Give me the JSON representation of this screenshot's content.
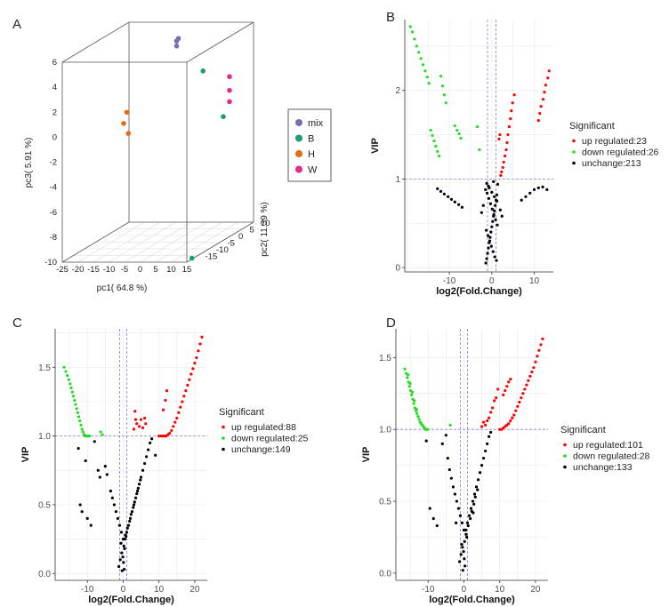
{
  "panel_letters": [
    "A",
    "B",
    "C",
    "D"
  ],
  "colors": {
    "mix": "#7570b3",
    "B": "#1b9e77",
    "H": "#e66a14",
    "W": "#e7298a",
    "up": "#ff0000",
    "down": "#22dd22",
    "unchange": "#000000",
    "grid": "#ebebeb",
    "refline": "#8080e0"
  },
  "chart_data": [
    {
      "panel": "A",
      "type": "scatter",
      "subtype": "3d-scatter",
      "xlabel": "pc1( 64.8 %)",
      "ylabel": "pc2( 11.39 %)",
      "zlabel": "pc3( 5.91 %)",
      "x_ticks": [
        "-25",
        "-20",
        "-15",
        "-10",
        "-5",
        "0",
        "5",
        "10",
        "15"
      ],
      "y_ticks": [
        "-15",
        "-10",
        "-5",
        "0",
        "5",
        "10"
      ],
      "z_ticks": [
        "-10",
        "-8",
        "-6",
        "-4",
        "-2",
        "0",
        "2",
        "4",
        "6"
      ],
      "xlim": [
        -25,
        15
      ],
      "ylim": [
        -20,
        10
      ],
      "zlim": [
        -10,
        6
      ],
      "legend_position": "right",
      "series": [
        {
          "name": "mix",
          "points": [
            [
              1,
              -5,
              6.1
            ],
            [
              1,
              -5,
              5.7
            ],
            [
              1.6,
              -5,
              6.3
            ]
          ]
        },
        {
          "name": "B",
          "points": [
            [
              9.5,
              -5,
              3.7
            ],
            [
              11,
              2,
              -0.7
            ],
            [
              14.5,
              -17,
              -10
            ]
          ]
        },
        {
          "name": "H",
          "points": [
            [
              -15,
              -5,
              0.4
            ],
            [
              -16,
              -5,
              -0.5
            ],
            [
              -14.5,
              -5,
              -1.3
            ]
          ]
        },
        {
          "name": "W",
          "points": [
            [
              13,
              2,
              2.5
            ],
            [
              13,
              2,
              1.4
            ],
            [
              13,
              2,
              0.5
            ]
          ]
        }
      ]
    },
    {
      "panel": "B",
      "type": "scatter",
      "subtype": "volcano",
      "xlabel": "log2(Fold.Change)",
      "ylabel": "VIP",
      "xlim": [
        -20.5,
        14.5
      ],
      "ylim": [
        -0.05,
        2.8
      ],
      "x_ticks": [
        -10,
        0,
        10
      ],
      "y_ticks": [
        0,
        1,
        2
      ],
      "threshold_y": 1,
      "threshold_x": [
        -1,
        1
      ],
      "legend_title": "Significant",
      "legend_position": "right",
      "series": [
        {
          "name": "up regulated:23",
          "x": [
            13.5,
            13.2,
            12.7,
            12.4,
            12.1,
            11.6,
            11.3,
            11.0,
            5.3,
            4.9,
            4.6,
            4.4,
            4.1,
            3.8,
            3.6,
            3.4,
            3.1,
            2.8,
            2.6,
            2.3,
            2.1,
            1.9,
            1.7
          ],
          "y": [
            2.22,
            2.14,
            2.06,
            1.98,
            1.9,
            1.82,
            1.74,
            1.66,
            1.95,
            1.86,
            1.77,
            1.68,
            1.59,
            1.5,
            1.41,
            1.33,
            1.26,
            1.19,
            1.13,
            1.08,
            1.04,
            1.5,
            1.45
          ]
        },
        {
          "name": "down regulated:26",
          "x": [
            -19.2,
            -18.7,
            -18.2,
            -17.7,
            -17.2,
            -16.7,
            -16.2,
            -15.7,
            -15.2,
            -14.8,
            -14.4,
            -14.0,
            -13.6,
            -13.2,
            -12.8,
            -12.4,
            -12.0,
            -11.6,
            -11.2,
            -10.8,
            -8.7,
            -8.2,
            -7.7,
            -7.3,
            -3.4,
            -2.9
          ],
          "y": [
            2.72,
            2.66,
            2.58,
            2.5,
            2.43,
            2.36,
            2.29,
            2.22,
            2.15,
            2.08,
            1.55,
            1.49,
            1.43,
            1.37,
            1.31,
            1.26,
            2.16,
            2.05,
            1.95,
            1.86,
            1.6,
            1.55,
            1.51,
            1.46,
            1.59,
            1.33
          ]
        },
        {
          "name": "unchange:213",
          "x": [
            -12.8,
            -12.0,
            -11.2,
            -10.3,
            -9.5,
            -8.7,
            -7.8,
            -7.0,
            7.0,
            8.0,
            9.0,
            10.0,
            11.0,
            12.0,
            13.0,
            -1.4,
            -1.2,
            -1.0,
            -0.8,
            -0.6,
            -0.4,
            -0.2,
            0.0,
            0.2,
            0.4,
            0.6,
            0.8,
            1.0,
            1.2,
            -1.5,
            -1.1,
            -0.7,
            -0.3,
            0.1,
            0.5,
            0.9,
            1.3,
            -1.3,
            -0.9,
            -0.5,
            -0.1,
            0.3,
            0.7,
            1.1,
            -1.2,
            -0.6,
            0.0,
            0.6,
            1.2,
            -0.8,
            0.4,
            1.4,
            -2.0,
            2.0,
            -2.4,
            2.4
          ],
          "y": [
            0.89,
            0.86,
            0.83,
            0.8,
            0.77,
            0.74,
            0.71,
            0.68,
            0.76,
            0.8,
            0.84,
            0.88,
            0.9,
            0.91,
            0.88,
            0.05,
            0.1,
            0.16,
            0.22,
            0.28,
            0.34,
            0.4,
            0.46,
            0.52,
            0.58,
            0.64,
            0.7,
            0.76,
            0.82,
            0.88,
            0.84,
            0.78,
            0.72,
            0.66,
            0.6,
            0.54,
            0.48,
            0.42,
            0.36,
            0.3,
            0.24,
            0.18,
            0.12,
            0.08,
            0.95,
            0.9,
            0.85,
            0.8,
            0.75,
            0.92,
            0.97,
            0.94,
            0.7,
            0.65,
            0.62,
            0.58
          ]
        }
      ]
    },
    {
      "panel": "C",
      "type": "scatter",
      "subtype": "volcano",
      "xlabel": "log2(Fold.Change)",
      "ylabel": "VIP",
      "xlim": [
        -19,
        23.5
      ],
      "ylim": [
        -0.05,
        1.78
      ],
      "x_ticks": [
        -10,
        0,
        10,
        20
      ],
      "y_ticks": [
        "0.0",
        "0.5",
        "1.0",
        "1.5"
      ],
      "threshold_y": 1,
      "threshold_x": [
        -1,
        1
      ],
      "legend_title": "Significant",
      "legend_position": "right",
      "series": [
        {
          "name": "up regulated:88",
          "x": [
            22.0,
            21.5,
            21.0,
            20.5,
            20.0,
            19.5,
            19.0,
            18.5,
            18.0,
            17.5,
            17.0,
            16.5,
            16.0,
            15.5,
            15.0,
            14.5,
            14.0,
            13.5,
            13.0,
            12.5,
            12.0,
            11.5,
            11.0,
            10.5,
            10.0,
            12.2,
            11.8,
            11.2,
            6.3,
            6.0,
            5.5,
            5.0,
            4.5,
            3.5,
            3.0,
            3.3,
            3.8
          ],
          "y": [
            1.72,
            1.67,
            1.62,
            1.57,
            1.53,
            1.49,
            1.45,
            1.41,
            1.37,
            1.33,
            1.29,
            1.25,
            1.21,
            1.17,
            1.13,
            1.1,
            1.07,
            1.04,
            1.02,
            1.01,
            1.0,
            1.0,
            1.0,
            1.0,
            1.0,
            1.33,
            1.26,
            1.19,
            1.09,
            1.13,
            1.06,
            1.12,
            1.07,
            1.12,
            1.05,
            1.18,
            1.09
          ]
        },
        {
          "name": "down regulated:25",
          "x": [
            -16.5,
            -16.0,
            -15.6,
            -15.2,
            -14.8,
            -14.5,
            -14.2,
            -13.9,
            -13.6,
            -13.3,
            -13.0,
            -12.7,
            -12.4,
            -12.1,
            -11.8,
            -11.5,
            -11.2,
            -10.9,
            -10.6,
            -10.3,
            -10.0,
            -9.7,
            -9.4,
            -6.3,
            -5.8
          ],
          "y": [
            1.5,
            1.47,
            1.44,
            1.41,
            1.38,
            1.35,
            1.32,
            1.29,
            1.26,
            1.23,
            1.2,
            1.17,
            1.14,
            1.11,
            1.08,
            1.05,
            1.03,
            1.01,
            1.0,
            1.0,
            1.0,
            1.0,
            1.0,
            1.03,
            1.01
          ]
        },
        {
          "name": "unchange:149",
          "x": [
            -12.0,
            -11.5,
            -10.0,
            -9.0,
            -8.0,
            -12.5,
            -10.5,
            -7.0,
            -6.5,
            -5.0,
            -4.5,
            -3.5,
            -3.0,
            -2.5,
            -2.0,
            -1.5,
            -1.0,
            -0.5,
            0.0,
            0.5,
            1.0,
            1.5,
            2.0,
            2.5,
            3.0,
            3.5,
            4.0,
            4.5,
            5.0,
            5.5,
            6.0,
            6.5,
            7.0,
            7.5,
            8.0,
            9.0,
            -1.2,
            -0.8,
            -0.4,
            0.2,
            0.6,
            1.2,
            1.8,
            2.2,
            2.8,
            3.2,
            3.8,
            4.2,
            4.8,
            -0.3,
            0.3,
            0.1,
            -0.1,
            0.4,
            -0.6,
            0.8
          ],
          "y": [
            0.5,
            0.45,
            0.4,
            0.35,
            0.96,
            0.91,
            0.82,
            0.75,
            0.7,
            0.78,
            0.72,
            0.6,
            0.55,
            0.5,
            0.45,
            0.4,
            0.35,
            0.3,
            0.25,
            0.25,
            0.3,
            0.35,
            0.4,
            0.45,
            0.5,
            0.55,
            0.6,
            0.65,
            0.7,
            0.75,
            0.8,
            0.85,
            0.9,
            0.95,
            0.98,
            0.86,
            0.05,
            0.1,
            0.15,
            0.2,
            0.28,
            0.33,
            0.38,
            0.43,
            0.48,
            0.52,
            0.58,
            0.62,
            0.68,
            0.02,
            0.03,
            0.08,
            0.12,
            0.18,
            0.22,
            0.27
          ]
        }
      ]
    },
    {
      "panel": "D",
      "type": "scatter",
      "subtype": "volcano",
      "xlabel": "log2(Fold.Change)",
      "ylabel": "VIP",
      "xlim": [
        -19,
        23.5
      ],
      "ylim": [
        -0.05,
        1.7
      ],
      "x_ticks": [
        -10,
        0,
        10,
        20
      ],
      "y_ticks": [
        "0.0",
        "0.5",
        "1.0",
        "1.5"
      ],
      "threshold_y": 1,
      "threshold_x": [
        -1,
        1
      ],
      "legend_title": "Significant",
      "legend_position": "right",
      "series": [
        {
          "name": "up regulated:101",
          "x": [
            22.0,
            21.5,
            21.0,
            20.5,
            20.0,
            19.5,
            19.0,
            18.5,
            18.0,
            17.5,
            17.0,
            16.5,
            16.0,
            15.5,
            15.0,
            14.5,
            14.0,
            13.5,
            13.0,
            12.5,
            12.0,
            11.5,
            11.0,
            10.5,
            10.0,
            13.0,
            12.5,
            12.0,
            11.5,
            11.0,
            8.5,
            8.0,
            7.5,
            7.0,
            6.5,
            6.0,
            5.5,
            5.0,
            9.0,
            9.5
          ],
          "y": [
            1.63,
            1.59,
            1.55,
            1.51,
            1.47,
            1.43,
            1.4,
            1.37,
            1.34,
            1.31,
            1.28,
            1.25,
            1.22,
            1.19,
            1.16,
            1.13,
            1.1,
            1.08,
            1.06,
            1.04,
            1.03,
            1.02,
            1.01,
            1.0,
            1.0,
            1.35,
            1.33,
            1.3,
            1.27,
            1.24,
            1.2,
            1.15,
            1.12,
            1.08,
            1.06,
            1.03,
            1.05,
            1.02,
            1.22,
            1.28
          ]
        },
        {
          "name": "down regulated:28",
          "x": [
            -16.5,
            -16.1,
            -15.8,
            -15.5,
            -15.2,
            -14.9,
            -14.6,
            -14.3,
            -14.0,
            -13.7,
            -13.4,
            -13.1,
            -12.8,
            -12.5,
            -12.2,
            -11.9,
            -11.6,
            -11.3,
            -11.0,
            -10.7,
            -10.4,
            -10.1,
            -15.6,
            -15.0,
            -14.4,
            -13.8,
            -13.2,
            -3.8
          ],
          "y": [
            1.42,
            1.39,
            1.36,
            1.33,
            1.3,
            1.27,
            1.24,
            1.21,
            1.18,
            1.15,
            1.13,
            1.11,
            1.09,
            1.07,
            1.05,
            1.04,
            1.03,
            1.02,
            1.01,
            1.0,
            1.0,
            1.0,
            1.38,
            1.32,
            1.26,
            1.2,
            1.14,
            1.03
          ]
        },
        {
          "name": "unchange:133",
          "x": [
            -10.5,
            -9.5,
            -8.5,
            -7.5,
            -6.0,
            -5.0,
            -4.5,
            -4.0,
            -3.5,
            -3.0,
            -2.5,
            -2.0,
            -1.5,
            -1.0,
            -0.5,
            0.0,
            0.5,
            1.0,
            1.5,
            2.0,
            2.5,
            3.0,
            3.5,
            4.0,
            4.5,
            5.0,
            5.5,
            6.0,
            6.5,
            7.0,
            7.5,
            -1.2,
            -0.8,
            -0.4,
            0.2,
            0.6,
            1.2,
            1.8,
            2.2,
            2.8,
            3.2,
            3.8,
            -0.3,
            0.3,
            0.1,
            -0.1,
            -0.6,
            0.8,
            -2.2,
            2.6
          ],
          "y": [
            0.92,
            0.45,
            0.38,
            0.33,
            0.9,
            0.96,
            0.8,
            0.72,
            0.66,
            0.6,
            0.55,
            0.5,
            0.45,
            0.4,
            0.35,
            0.3,
            0.3,
            0.35,
            0.4,
            0.45,
            0.5,
            0.55,
            0.6,
            0.65,
            0.7,
            0.75,
            0.8,
            0.85,
            0.9,
            0.95,
            0.98,
            0.08,
            0.13,
            0.18,
            0.22,
            0.27,
            0.33,
            0.38,
            0.43,
            0.48,
            0.53,
            0.58,
            0.02,
            0.05,
            0.1,
            0.15,
            0.2,
            0.25,
            0.35,
            0.42
          ]
        }
      ]
    }
  ]
}
